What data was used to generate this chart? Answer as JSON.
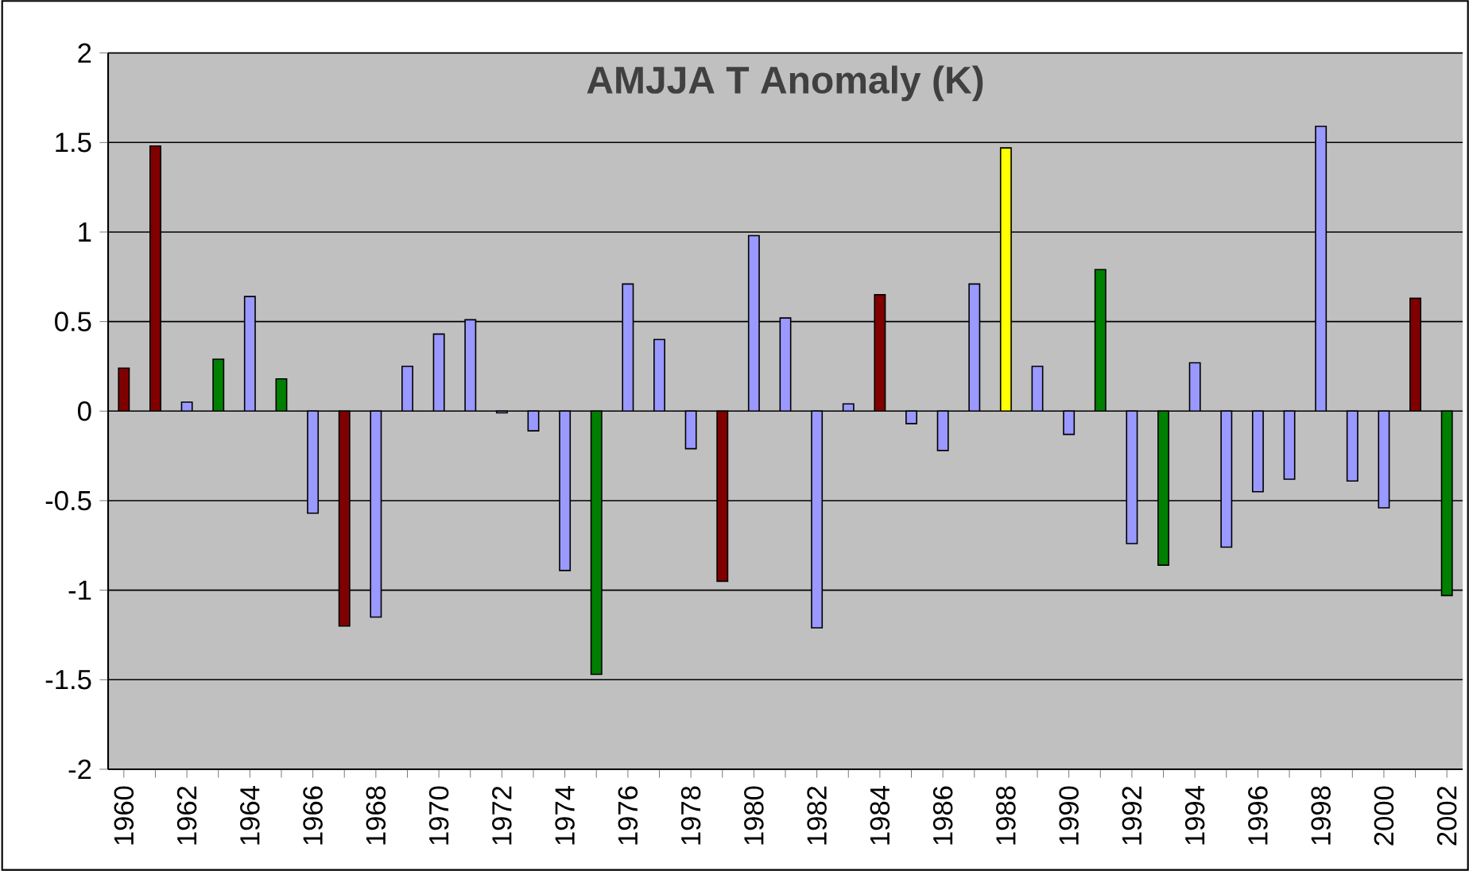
{
  "chart_data": {
    "type": "bar",
    "title": "AMJJA T Anomaly (K)",
    "categories": [
      "1960",
      null,
      "1962",
      null,
      "1964",
      null,
      "1966",
      null,
      "1968",
      null,
      "1970",
      null,
      "1972",
      null,
      "1974",
      null,
      "1976",
      null,
      "1978",
      null,
      "1980",
      null,
      "1982",
      null,
      "1984",
      null,
      "1986",
      null,
      "1988",
      null,
      "1990",
      null,
      "1992",
      null,
      "1994",
      null,
      "1996",
      null,
      "1998",
      null,
      "2000",
      null,
      "2002"
    ],
    "values": [
      0.24,
      1.48,
      0.05,
      0.29,
      0.64,
      0.18,
      -0.57,
      -1.2,
      -1.15,
      0.25,
      0.43,
      0.51,
      -0.01,
      -0.11,
      -0.89,
      -1.47,
      0.71,
      0.4,
      -0.21,
      -0.95,
      0.98,
      0.52,
      -1.21,
      0.04,
      0.65,
      -0.07,
      -0.22,
      0.71,
      1.47,
      0.25,
      -0.13,
      0.79,
      -0.74,
      -0.86,
      0.27,
      -0.76,
      -0.45,
      -0.38,
      1.59,
      -0.39,
      -0.54,
      0.63,
      -1.03
    ],
    "colors": [
      "#800000",
      "#800000",
      "#9999ff",
      "#008000",
      "#9999ff",
      "#008000",
      "#9999ff",
      "#800000",
      "#9999ff",
      "#9999ff",
      "#9999ff",
      "#9999ff",
      "#9999ff",
      "#9999ff",
      "#9999ff",
      "#008000",
      "#9999ff",
      "#9999ff",
      "#9999ff",
      "#800000",
      "#9999ff",
      "#9999ff",
      "#9999ff",
      "#9999ff",
      "#800000",
      "#9999ff",
      "#9999ff",
      "#9999ff",
      "#ffff00",
      "#9999ff",
      "#9999ff",
      "#008000",
      "#9999ff",
      "#008000",
      "#9999ff",
      "#9999ff",
      "#9999ff",
      "#9999ff",
      "#9999ff",
      "#9999ff",
      "#9999ff",
      "#800000",
      "#008000"
    ],
    "ylim": [
      -2,
      2
    ],
    "yticks": [
      -2,
      -1.5,
      -1,
      -0.5,
      0,
      0.5,
      1,
      1.5,
      2
    ],
    "grid": "y"
  }
}
